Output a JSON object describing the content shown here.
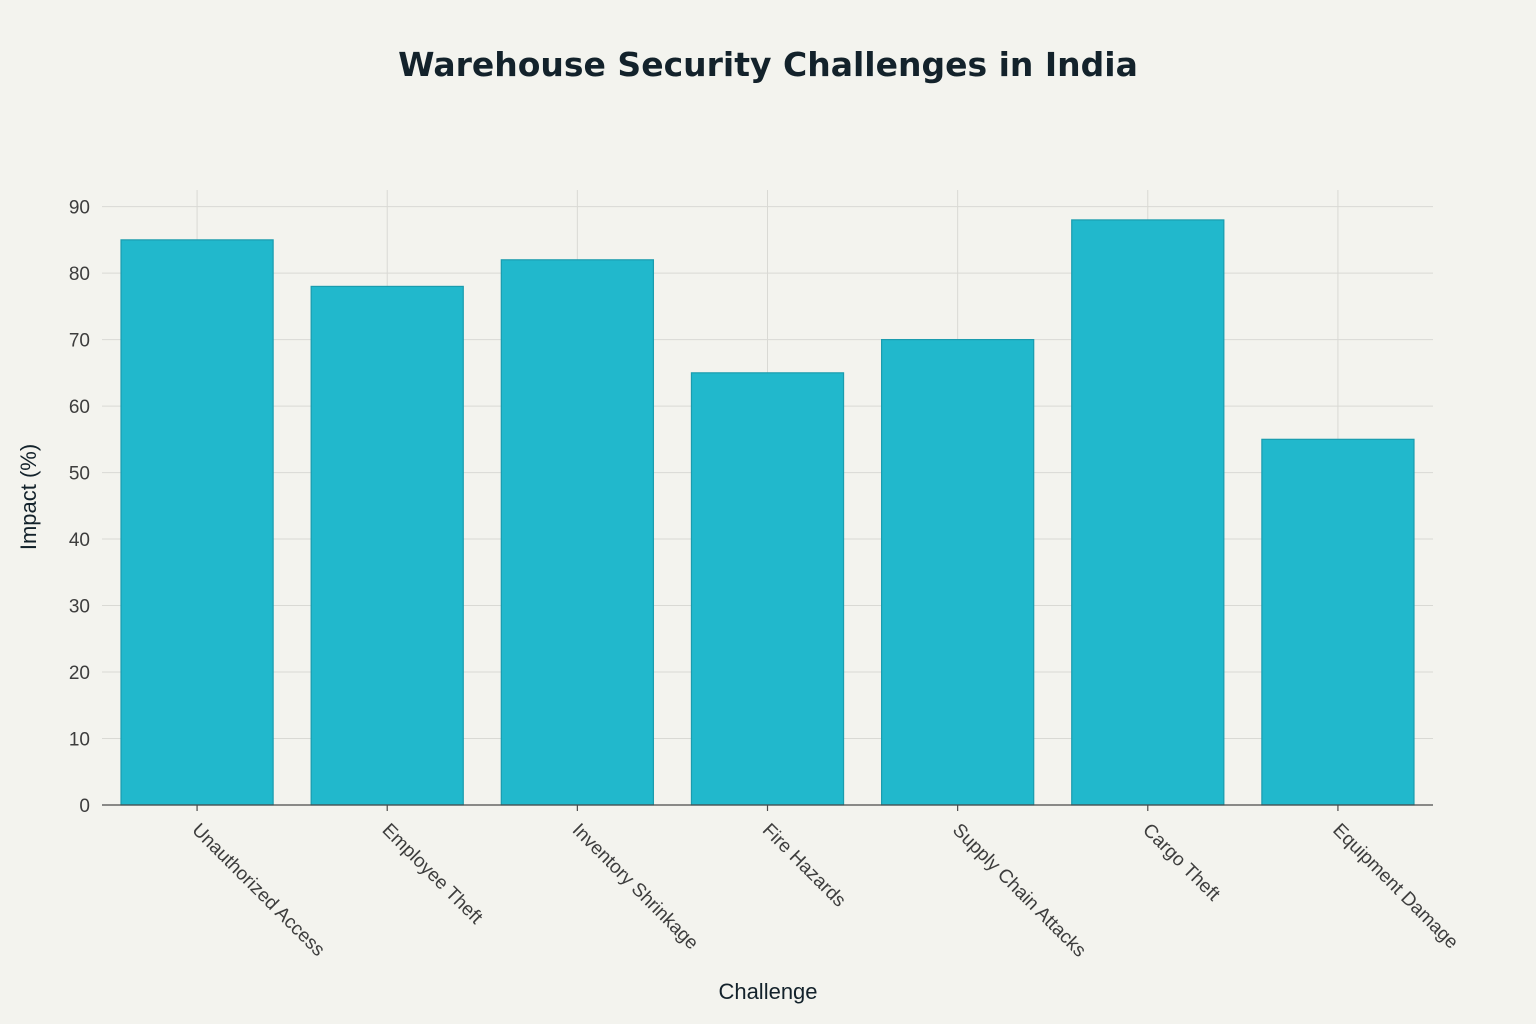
{
  "chart_data": {
    "type": "bar",
    "title": "Warehouse Security Challenges in India",
    "xlabel": "Challenge",
    "ylabel": "Impact (%)",
    "categories": [
      "Unauthorized Access",
      "Employee Theft",
      "Inventory Shrinkage",
      "Fire Hazards",
      "Supply Chain Attacks",
      "Cargo Theft",
      "Equipment Damage"
    ],
    "values": [
      85,
      78,
      82,
      65,
      70,
      88,
      55
    ],
    "ylim": [
      0,
      92.5
    ],
    "yticks": [
      0,
      10,
      20,
      30,
      40,
      50,
      60,
      70,
      80,
      90
    ],
    "grid": true,
    "bar_color": "#21b8cc"
  }
}
